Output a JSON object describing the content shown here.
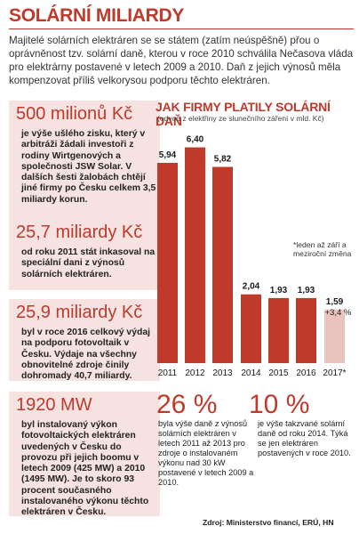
{
  "title": "SOLÁRNÍ MILIARDY",
  "intro": "Majitelé solárních elektráren se se státem (zatím neúspěšně) přou o oprávněnost tzv. solární daně, kterou v roce 2010 schválila Nečasova vláda pro elektrárny postavené v letech 2009 a 2010. Daň z jejich výnosů měla kompenzovat příliš velkorysou podporu těchto elektráren.",
  "stats": [
    {
      "big": "500 milionů Kč",
      "text": "je výše ušlého zisku, který v arbitráži žádali investoři z rodiny Wirtgenových a společnosti JSW Solar. V dalších šesti žalobách chtějí jiné firmy po Česku celkem 3,5 miliardy korun."
    },
    {
      "big": "25,7 miliardy Kč",
      "text": "od roku 2011 stát inkasoval na speciální dani z výnosů solárních elektráren."
    },
    {
      "big": "25,9 miliardy Kč",
      "text": "byl v roce 2016 celkový výdaj na podporu fotovoltaik v Česku. Výdaje na všechny obnovitelné zdroje činily dohromady 40,7 miliardy."
    },
    {
      "big": "1920 MW",
      "text": "byl instalovaný výkon fotovoltaických elektráren uvedených v Česku do provozu při jejich boomu v letech 2009 (425 MW) a 2010 (1495 MW). Je to skoro 93 procent současného instalovaného výkonu těchto elektráren v Česku."
    }
  ],
  "chart_data": {
    "type": "bar",
    "title": "JAK FIRMY PLATILY SOLÁRNÍ DAŇ",
    "subtitle": "(odvod z elektřiny ze slunečního záření v mld. Kč)",
    "categories": [
      "2011",
      "2012",
      "2013",
      "2014",
      "2015",
      "2016",
      "2017*"
    ],
    "values": [
      5.94,
      6.4,
      5.82,
      2.04,
      1.93,
      1.93,
      1.59
    ],
    "value_labels": [
      "5,94",
      "6,40",
      "5,82",
      "2,04",
      "1,93",
      "1,93",
      "1,59"
    ],
    "extra_label": "+3,4 %",
    "note": "*leden až září a meziroční změna",
    "ylim": [
      0,
      6.6
    ],
    "colors": {
      "main": "#c0392b",
      "estimate": "#ebc3be"
    }
  },
  "percents": [
    {
      "big": "26 %",
      "text": "byla výše daně z výnosů solárních elektráren v letech 2011 až 2013 pro zdroje o instalovaném výkonu nad 30 kW postavené v letech 2009 a 2010."
    },
    {
      "big": "10 %",
      "text": "je výše takzvané solární daně od roku 2014. Týká se jen elektráren postavených v roce 2010."
    }
  ],
  "source": "Zdroj: Ministerstvo financí, ERÚ, HN"
}
